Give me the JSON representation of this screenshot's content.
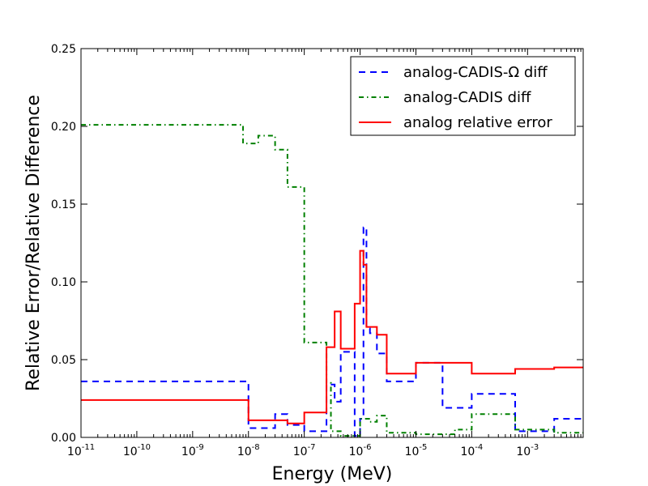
{
  "chart_data": {
    "type": "line",
    "title": "",
    "xlabel": "Energy (MeV)",
    "ylabel": "Relative Error/Relative Difference",
    "xscale": "log",
    "xlim": [
      1e-11,
      0.00993
    ],
    "ylim": [
      0,
      0.25
    ],
    "grid": false,
    "legend_position": "top-right",
    "x_ticks": [
      {
        "value": 1e-11,
        "base": "10",
        "exp": "-11"
      },
      {
        "value": 1e-10,
        "base": "10",
        "exp": "-10"
      },
      {
        "value": 1e-09,
        "base": "10",
        "exp": "-9"
      },
      {
        "value": 1e-08,
        "base": "10",
        "exp": "-8"
      },
      {
        "value": 1e-07,
        "base": "10",
        "exp": "-7"
      },
      {
        "value": 1e-06,
        "base": "10",
        "exp": "-6"
      },
      {
        "value": 1e-05,
        "base": "10",
        "exp": "-5"
      },
      {
        "value": 0.0001,
        "base": "10",
        "exp": "-4"
      },
      {
        "value": 0.001,
        "base": "10",
        "exp": "-3"
      }
    ],
    "y_ticks": [
      {
        "value": 0.0,
        "label": "0.00"
      },
      {
        "value": 0.05,
        "label": "0.05"
      },
      {
        "value": 0.1,
        "label": "0.10"
      },
      {
        "value": 0.15,
        "label": "0.15"
      },
      {
        "value": 0.2,
        "label": "0.20"
      },
      {
        "value": 0.25,
        "label": "0.25"
      }
    ],
    "series": [
      {
        "name": "analog-CADIS-Ω diff",
        "color": "#0000ff",
        "style": "dashed",
        "step_edges": [
          1e-11,
          1e-08,
          3e-08,
          5e-08,
          1e-07,
          2.5e-07,
          3.5e-07,
          4.5e-07,
          8e-07,
          1e-06,
          1.15e-06,
          1.3e-06,
          1.5e-06,
          2e-06,
          3e-06,
          1e-05,
          3e-05,
          0.0001,
          0.0006,
          0.003,
          0.00993
        ],
        "values": [
          0.036,
          0.006,
          0.015,
          0.008,
          0.004,
          0.034,
          0.023,
          0.055,
          0.001,
          0.012,
          0.135,
          0.07,
          0.067,
          0.054,
          0.036,
          0.048,
          0.019,
          0.028,
          0.004,
          0.012
        ]
      },
      {
        "name": "analog-CADIS diff",
        "color": "#008000",
        "style": "dashdot",
        "step_edges": [
          1e-11,
          8e-09,
          1.5e-08,
          3e-08,
          5e-08,
          1e-07,
          2.5e-07,
          3e-07,
          4.5e-07,
          1e-06,
          1.5e-06,
          2e-06,
          3e-06,
          1e-05,
          5e-05,
          0.0001,
          0.0006,
          0.003,
          0.00993
        ],
        "values": [
          0.201,
          0.189,
          0.194,
          0.185,
          0.161,
          0.061,
          0.035,
          0.004,
          0.001,
          0.012,
          0.01,
          0.014,
          0.003,
          0.002,
          0.005,
          0.015,
          0.005,
          0.003
        ]
      },
      {
        "name": "analog relative error",
        "color": "#ff0000",
        "style": "solid",
        "step_edges": [
          1e-11,
          1e-08,
          5e-08,
          1e-07,
          2.5e-07,
          3.5e-07,
          4.5e-07,
          8e-07,
          1e-06,
          1.15e-06,
          1.3e-06,
          2e-06,
          3e-06,
          1e-05,
          0.0001,
          0.0006,
          0.003,
          0.00993
        ],
        "values": [
          0.024,
          0.011,
          0.009,
          0.016,
          0.058,
          0.081,
          0.057,
          0.086,
          0.12,
          0.111,
          0.071,
          0.066,
          0.041,
          0.048,
          0.041,
          0.044,
          0.045
        ]
      }
    ]
  }
}
